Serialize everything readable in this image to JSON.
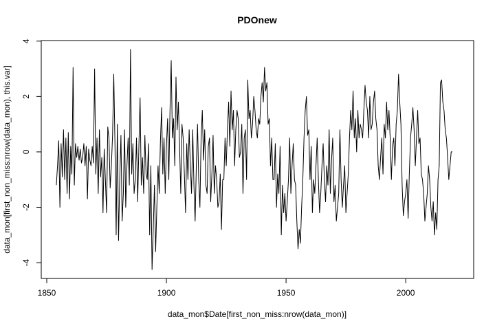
{
  "chart_data": {
    "type": "line",
    "title": "PDOnew",
    "x_label": "data_mon$Date[first_non_miss:nrow(data_mon)]",
    "y_label": "data_mon[first_non_miss:nrow(data_mon), this.var]",
    "xlim": [
      1847.7,
      2028.4
    ],
    "xticks": [
      1850,
      1900,
      1950,
      2000
    ],
    "ylim": [
      -4.57,
      4.02
    ],
    "yticks": [
      -4,
      -2,
      0,
      2,
      4
    ],
    "color": "#000000",
    "x": [
      1854,
      1854.5,
      1855,
      1855.5,
      1856,
      1856.5,
      1857,
      1857.5,
      1858,
      1858.5,
      1859,
      1859.5,
      1860,
      1860.5,
      1861,
      1861.5,
      1862,
      1862.5,
      1863,
      1863.5,
      1864,
      1864.5,
      1865,
      1865.5,
      1866,
      1866.5,
      1867,
      1867.5,
      1868,
      1868.5,
      1869,
      1869.5,
      1870,
      1870.5,
      1871,
      1871.5,
      1872,
      1872.5,
      1873,
      1873.5,
      1874,
      1874.5,
      1875,
      1875.5,
      1876,
      1876.5,
      1877,
      1877.5,
      1878,
      1878.5,
      1879,
      1879.5,
      1880,
      1880.5,
      1881,
      1881.5,
      1882,
      1882.5,
      1883,
      1883.5,
      1884,
      1884.5,
      1885,
      1885.5,
      1886,
      1886.5,
      1887,
      1887.5,
      1888,
      1888.5,
      1889,
      1889.5,
      1890,
      1890.5,
      1891,
      1891.5,
      1892,
      1892.5,
      1893,
      1893.5,
      1894,
      1894.5,
      1895,
      1895.5,
      1896,
      1896.5,
      1897,
      1897.5,
      1898,
      1898.5,
      1899,
      1899.5,
      1900,
      1900.5,
      1901,
      1901.5,
      1902,
      1902.5,
      1903,
      1903.5,
      1904,
      1904.5,
      1905,
      1905.5,
      1906,
      1906.5,
      1907,
      1907.5,
      1908,
      1908.5,
      1909,
      1909.5,
      1910,
      1910.5,
      1911,
      1911.5,
      1912,
      1912.5,
      1913,
      1913.5,
      1914,
      1914.5,
      1915,
      1915.5,
      1916,
      1916.5,
      1917,
      1917.5,
      1918,
      1918.5,
      1919,
      1919.5,
      1920,
      1920.5,
      1921,
      1921.5,
      1922,
      1922.5,
      1923,
      1923.5,
      1924,
      1924.5,
      1925,
      1925.5,
      1926,
      1926.5,
      1927,
      1927.5,
      1928,
      1928.5,
      1929,
      1929.5,
      1930,
      1930.5,
      1931,
      1931.5,
      1932,
      1932.5,
      1933,
      1933.5,
      1934,
      1934.5,
      1935,
      1935.5,
      1936,
      1936.5,
      1937,
      1937.5,
      1938,
      1938.5,
      1939,
      1939.5,
      1940,
      1940.5,
      1941,
      1941.5,
      1942,
      1942.5,
      1943,
      1943.5,
      1944,
      1944.5,
      1945,
      1945.5,
      1946,
      1946.5,
      1947,
      1947.5,
      1948,
      1948.5,
      1949,
      1949.5,
      1950,
      1950.5,
      1951,
      1951.5,
      1952,
      1952.5,
      1953,
      1953.5,
      1954,
      1954.5,
      1955,
      1955.5,
      1956,
      1956.5,
      1957,
      1957.5,
      1958,
      1958.5,
      1959,
      1959.5,
      1960,
      1960.5,
      1961,
      1961.5,
      1962,
      1962.5,
      1963,
      1963.5,
      1964,
      1964.5,
      1965,
      1965.5,
      1966,
      1966.5,
      1967,
      1967.5,
      1968,
      1968.5,
      1969,
      1969.5,
      1970,
      1970.5,
      1971,
      1971.5,
      1972,
      1972.5,
      1973,
      1973.5,
      1974,
      1974.5,
      1975,
      1975.5,
      1976,
      1976.5,
      1977,
      1977.5,
      1978,
      1978.5,
      1979,
      1979.5,
      1980,
      1980.5,
      1981,
      1981.5,
      1982,
      1982.5,
      1983,
      1983.5,
      1984,
      1984.5,
      1985,
      1985.5,
      1986,
      1986.5,
      1987,
      1987.5,
      1988,
      1988.5,
      1989,
      1989.5,
      1990,
      1990.5,
      1991,
      1991.5,
      1992,
      1992.5,
      1993,
      1993.5,
      1994,
      1994.5,
      1995,
      1995.5,
      1996,
      1996.5,
      1997,
      1997.5,
      1998,
      1998.5,
      1999,
      1999.5,
      2000,
      2000.5,
      2001,
      2001.5,
      2002,
      2002.5,
      2003,
      2003.5,
      2004,
      2004.5,
      2005,
      2005.5,
      2006,
      2006.5,
      2007,
      2007.5,
      2008,
      2008.5,
      2009,
      2009.5,
      2010,
      2010.5,
      2011,
      2011.5,
      2012,
      2012.5,
      2013,
      2013.5,
      2014,
      2014.5,
      2015,
      2015.5,
      2016,
      2016.5,
      2017,
      2017.5,
      2018,
      2018.5,
      2019,
      2019.5
    ],
    "values": [
      -1.2,
      -0.5,
      0.4,
      -2.0,
      0.3,
      -0.9,
      0.8,
      -1.0,
      0.5,
      -1.5,
      0.7,
      -1.7,
      0.2,
      -0.8,
      3.05,
      -1.2,
      0.3,
      -0.2,
      0.2,
      -0.3,
      0.1,
      -0.4,
      -0.2,
      0.3,
      -0.5,
      0.2,
      -1.7,
      0.1,
      -0.3,
      -0.5,
      0.2,
      -0.4,
      3.0,
      -0.8,
      0.5,
      -1.5,
      0.8,
      -0.9,
      -0.2,
      -2.2,
      0.1,
      -1.0,
      -2.2,
      0.9,
      0.5,
      -1.3,
      -0.5,
      0.6,
      2.8,
      0.3,
      -3.0,
      1.0,
      -3.2,
      -1.0,
      0.6,
      -2.5,
      -1.5,
      0.8,
      -2.0,
      -0.5,
      0.5,
      -1.2,
      3.7,
      -0.8,
      0.3,
      -1.5,
      -1.0,
      0.5,
      -1.8,
      0.2,
      1.95,
      -1.2,
      -0.2,
      -1.5,
      0.6,
      -0.8,
      -1.0,
      0.3,
      -3.0,
      -0.5,
      -4.25,
      -2.8,
      -1.2,
      -3.6,
      -2.0,
      -0.5,
      -1.5,
      0.4,
      1.6,
      -0.8,
      0.5,
      -1.5,
      0.2,
      1.2,
      -1.0,
      1.5,
      3.3,
      0.5,
      1.2,
      -0.5,
      2.7,
      0.8,
      1.8,
      0.2,
      -1.5,
      1.0,
      0.5,
      -0.8,
      -2.2,
      0.3,
      -1.0,
      0.8,
      -0.5,
      -1.5,
      0.8,
      -1.2,
      -2.5,
      -0.5,
      1.0,
      -1.0,
      -2.0,
      0.5,
      1.5,
      -0.3,
      0.8,
      -1.2,
      -1.5,
      0.2,
      0.5,
      -1.8,
      -0.8,
      0.6,
      -1.5,
      -0.5,
      -1.0,
      -2.0,
      -1.8,
      -0.8,
      -2.8,
      -1.0,
      -1.0,
      0.5,
      -0.5,
      0.8,
      1.8,
      0.2,
      2.2,
      0.8,
      1.5,
      -0.5,
      0.8,
      1.5,
      1.2,
      -0.2,
      0.0,
      1.0,
      -1.5,
      0.5,
      0.8,
      -1.0,
      2.6,
      1.2,
      1.5,
      0.5,
      1.0,
      2.0,
      1.5,
      0.8,
      0.5,
      1.2,
      1.0,
      2.0,
      2.5,
      1.8,
      3.05,
      2.2,
      2.5,
      1.0,
      1.2,
      -0.5,
      0.5,
      -1.0,
      -1.0,
      0.3,
      -2.0,
      -0.8,
      -1.5,
      0.2,
      -3.0,
      -1.2,
      -2.2,
      -1.5,
      -2.5,
      -1.8,
      -1.0,
      0.5,
      -1.5,
      -0.5,
      0.3,
      -1.0,
      -1.2,
      -2.5,
      -3.5,
      -2.8,
      -3.3,
      -2.0,
      -1.0,
      0.5,
      1.5,
      2.0,
      0.6,
      0.8,
      -1.0,
      0.2,
      -2.2,
      -1.0,
      -1.5,
      -0.5,
      0.5,
      -1.0,
      -2.2,
      -1.5,
      -0.5,
      0.3,
      -1.0,
      -1.8,
      -0.5,
      -1.2,
      0.8,
      -1.5,
      -0.3,
      0.5,
      -1.8,
      -1.2,
      -2.5,
      -2.0,
      -1.5,
      0.8,
      -1.0,
      -2.0,
      -1.2,
      -0.5,
      -2.2,
      -1.5,
      -0.8,
      0.5,
      1.5,
      0.8,
      2.2,
      0.5,
      1.2,
      0.0,
      1.5,
      0.5,
      1.0,
      0.8,
      0.5,
      1.5,
      2.4,
      1.8,
      1.5,
      0.5,
      2.0,
      0.8,
      1.0,
      1.8,
      2.2,
      1.2,
      0.8,
      -0.5,
      -1.0,
      -0.2,
      0.5,
      -0.8,
      1.0,
      0.5,
      1.8,
      0.8,
      1.5,
      0.5,
      -1.0,
      0.2,
      0.5,
      -0.5,
      1.0,
      1.5,
      2.8,
      1.8,
      1.0,
      -1.2,
      -2.3,
      -1.8,
      -1.5,
      -1.0,
      -2.4,
      -0.8,
      0.5,
      1.0,
      1.6,
      0.8,
      -0.5,
      0.5,
      1.5,
      0.3,
      0.5,
      -0.8,
      -1.0,
      -1.5,
      -2.5,
      -2.0,
      -1.5,
      -0.5,
      -1.0,
      -2.0,
      -2.5,
      -1.8,
      -3.0,
      -2.2,
      -2.8,
      -1.0,
      -0.5,
      2.5,
      2.6,
      1.8,
      1.5,
      0.8,
      0.5,
      -0.2,
      -1.0,
      -0.5,
      0.0,
      0.0
    ]
  }
}
